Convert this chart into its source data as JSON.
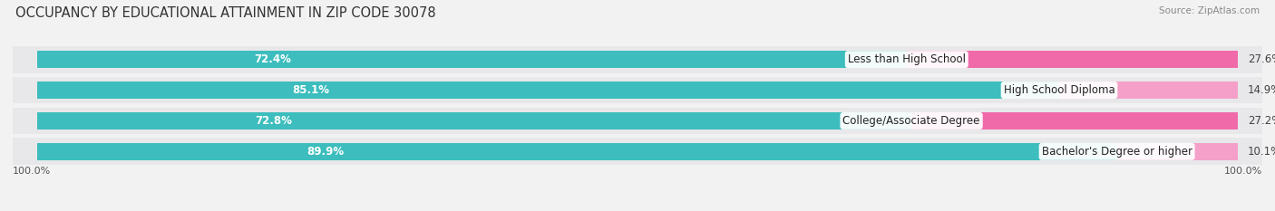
{
  "title": "OCCUPANCY BY EDUCATIONAL ATTAINMENT IN ZIP CODE 30078",
  "source": "Source: ZipAtlas.com",
  "categories": [
    "Less than High School",
    "High School Diploma",
    "College/Associate Degree",
    "Bachelor's Degree or higher"
  ],
  "owner_values": [
    72.4,
    85.1,
    72.8,
    89.9
  ],
  "renter_values": [
    27.6,
    14.9,
    27.2,
    10.1
  ],
  "owner_color": "#3dbdbd",
  "renter_colors": [
    "#f06aaa",
    "#f4a0c8",
    "#f06aaa",
    "#f4a0c8"
  ],
  "bg_color": "#f2f2f2",
  "row_bg_color": "#e8e8ea",
  "title_fontsize": 10.5,
  "bar_label_fontsize": 8.5,
  "cat_label_fontsize": 8.5,
  "tick_fontsize": 8,
  "legend_fontsize": 8.5,
  "axis_label_left": "100.0%",
  "axis_label_right": "100.0%"
}
